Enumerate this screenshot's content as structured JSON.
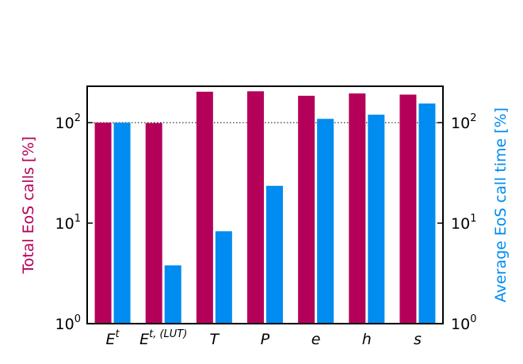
{
  "chart_data": {
    "type": "bar",
    "log_scale": true,
    "categories": [
      {
        "text": "E",
        "sup": "t"
      },
      {
        "text": "E",
        "sup": "t, (LUT)"
      },
      {
        "text": "T"
      },
      {
        "text": "P"
      },
      {
        "text": "e"
      },
      {
        "text": "h"
      },
      {
        "text": "s"
      }
    ],
    "ylabel": "Total EoS calls [%]",
    "y2label": "Average EoS call time [%]",
    "ylim": [
      1,
      230
    ],
    "y2lim": [
      1,
      230
    ],
    "yticks": [
      {
        "value": 1,
        "label": "10",
        "exp": "0"
      },
      {
        "value": 10,
        "label": "10",
        "exp": "1"
      },
      {
        "value": 100,
        "label": "10",
        "exp": "2"
      }
    ],
    "y2ticks": [
      {
        "value": 1,
        "label": "10",
        "exp": "0"
      },
      {
        "value": 10,
        "label": "10",
        "exp": "1"
      },
      {
        "value": 100,
        "label": "10",
        "exp": "2"
      }
    ],
    "reference_line": 100,
    "series": [
      {
        "name": "Total EoS calls",
        "color": "#b5005a",
        "values": [
          100,
          99,
          203,
          205,
          185,
          195,
          190
        ]
      },
      {
        "name": "Average EoS call time",
        "color": "#008cf0",
        "axis": "y2",
        "values": [
          100,
          3.8,
          8.3,
          23.5,
          109,
          120,
          155
        ]
      }
    ]
  }
}
